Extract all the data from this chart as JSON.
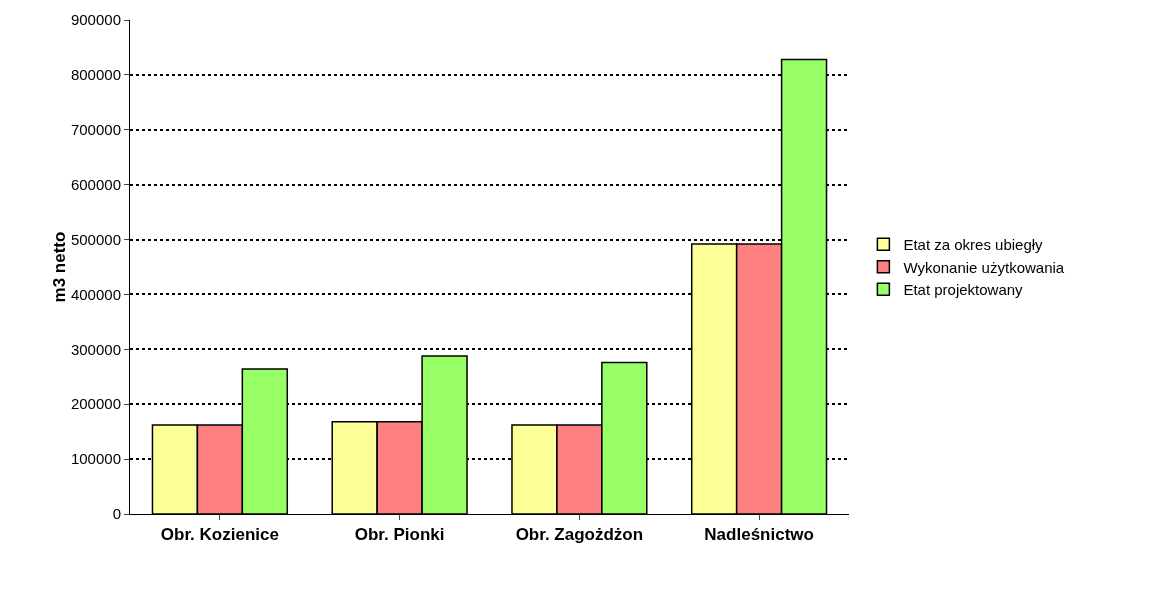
{
  "chart_data": {
    "type": "bar",
    "ylabel": "m3 netto",
    "categories": [
      "Obr. Kozienice",
      "Obr. Pionki",
      "Obr. Zagożdżon",
      "Nadleśnictwo"
    ],
    "series": [
      {
        "name": "Etat za okres ubiegły",
        "color": "#ffff99",
        "values": [
          162000,
          168000,
          162000,
          492000
        ]
      },
      {
        "name": "Wykonanie użytkowania",
        "color": "#ff8080",
        "values": [
          162000,
          168000,
          162000,
          492000
        ]
      },
      {
        "name": "Etat projektowany",
        "color": "#99ff66",
        "values": [
          264000,
          288000,
          276000,
          828000
        ]
      }
    ],
    "ylim": [
      0,
      900000
    ],
    "yticks": [
      0,
      100000,
      200000,
      300000,
      400000,
      500000,
      600000,
      700000,
      800000,
      900000
    ],
    "grid": "y",
    "legend": "right"
  }
}
